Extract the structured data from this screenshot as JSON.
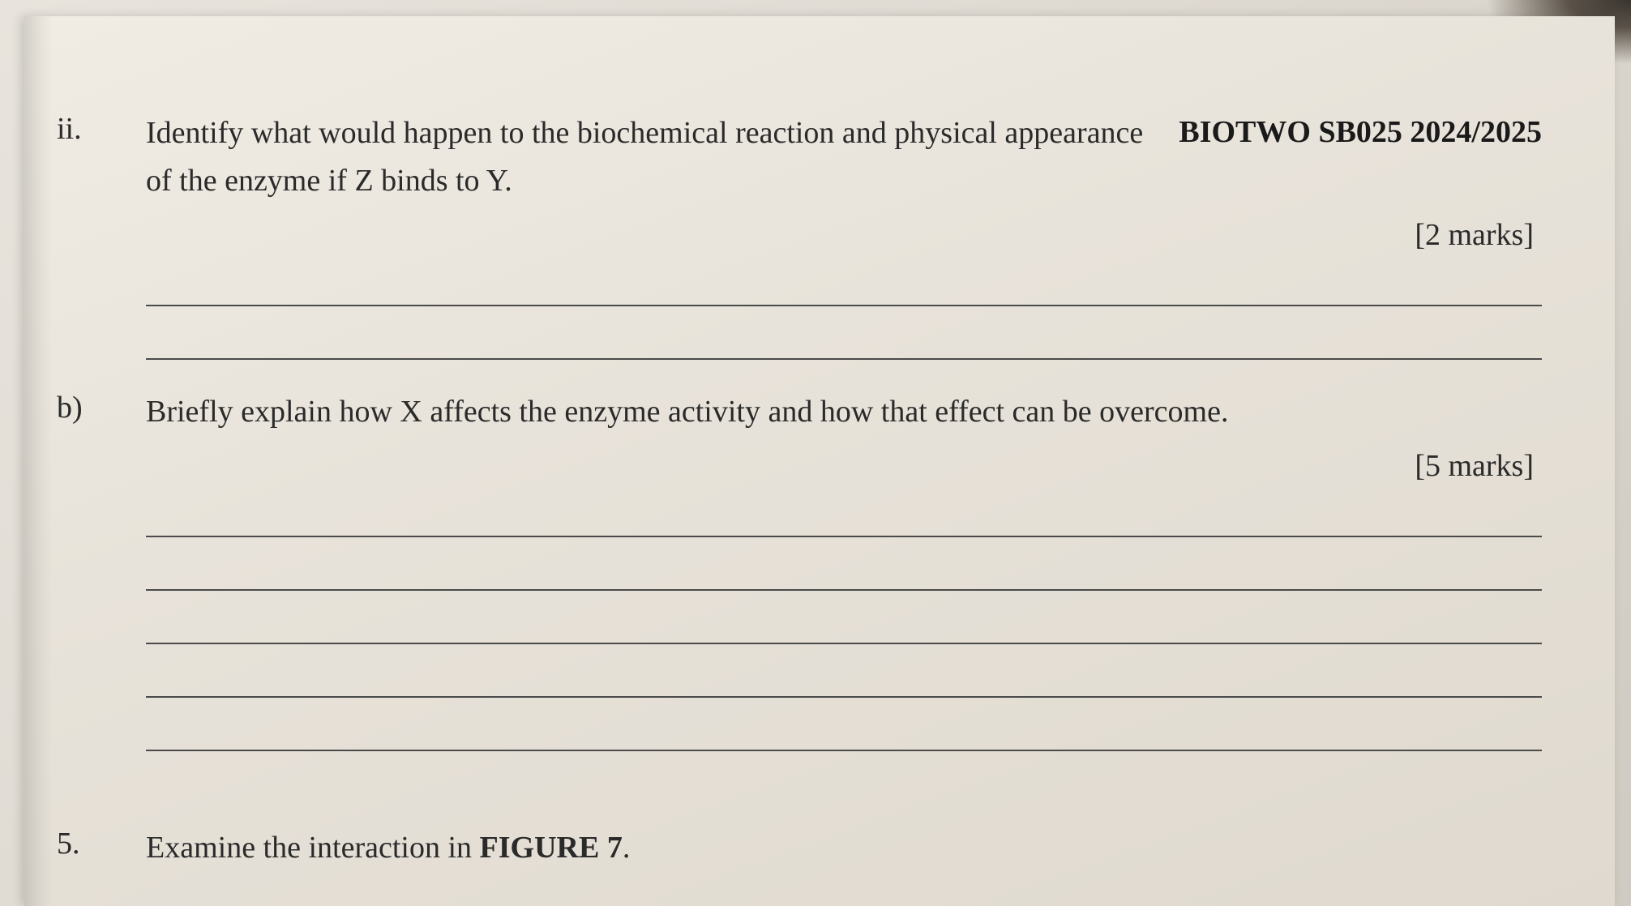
{
  "header": {
    "course_code": "BIOTWO SB025 2024/2025"
  },
  "questions": {
    "ii": {
      "label": "ii.",
      "text_part1": "Identify what would happen to the biochemical reaction and physical appearance of the enzyme if Z binds to Y.",
      "marks": "[2 marks]",
      "answer_line_count": 2
    },
    "b": {
      "label": "b)",
      "text": "Briefly explain how X affects the enzyme activity and how that effect can be overcome.",
      "marks": "[5 marks]",
      "answer_line_count": 5
    },
    "q5": {
      "label": "5.",
      "text_prefix": "Examine the interaction in ",
      "text_bold": "FIGURE 7",
      "text_suffix": "."
    }
  },
  "styling": {
    "background_gradient_start": "#e8e4dd",
    "background_gradient_end": "#d0cbc2",
    "page_bg_start": "#f0ece4",
    "page_bg_end": "#dfd9cf",
    "text_color": "#2a2a2a",
    "line_color": "#4a4a4a",
    "font_size_body": 38,
    "font_family": "Georgia, Times New Roman, serif",
    "label_column_width": 110,
    "answer_line_height": 58
  }
}
